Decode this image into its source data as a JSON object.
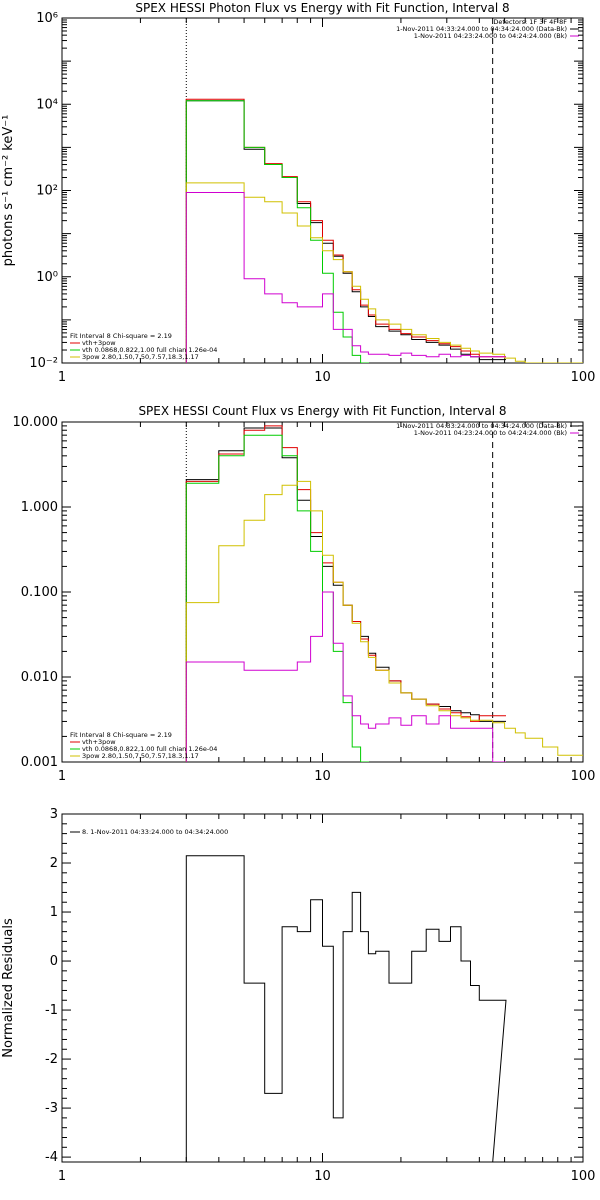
{
  "chart_data": [
    {
      "type": "line",
      "title": "SPEX HESSI Photon Flux vs Energy with Fit Function, Interval 8",
      "ylabel": "photons s⁻¹ cm⁻² keV⁻¹",
      "xlabel": "",
      "xscale": "log",
      "yscale": "log",
      "xlim": [
        1,
        100
      ],
      "ylim": [
        0.01,
        1000000
      ],
      "xticks": [
        {
          "v": 1,
          "label": "1"
        },
        {
          "v": 10,
          "label": "10"
        },
        {
          "v": 100,
          "label": "100"
        }
      ],
      "yticks": [
        {
          "v": 0.01,
          "label": "10⁻²"
        },
        {
          "v": 1,
          "label": "10⁰"
        },
        {
          "v": 100,
          "label": "10²"
        },
        {
          "v": 10000,
          "label": "10⁴"
        },
        {
          "v": 1000000,
          "label": "10⁶"
        }
      ],
      "vlines": [
        {
          "x": 3,
          "style": "dotted"
        },
        {
          "x": 45,
          "style": "dashed"
        }
      ],
      "legend_right": [
        {
          "text": "Detectors: 1F 3F 4F 8F",
          "color": "#000000"
        },
        {
          "text": "1-Nov-2011 04:33:24.000 to 04:34:24.000 (Data-Bk)",
          "color": "#000000"
        },
        {
          "text": "1-Nov-2011 04:23:24.000 to 04:24:24.000 (Bk)",
          "color": "#d000d0"
        }
      ],
      "legend_left": [
        {
          "text": "Fit Interval 8   Chi-square = 2.19",
          "color": "#000000"
        },
        {
          "text": "vth+3pow",
          "color": "#e00000"
        },
        {
          "text": "vth 0.0868,0.822,1.00  full chian 1.26e-04",
          "color": "#00cc00"
        },
        {
          "text": "3pow 2.80,1.50,7.50,7.57,18.3,1.17",
          "color": "#d0c000"
        }
      ],
      "series": [
        {
          "color": "#000000",
          "x": [
            3,
            4,
            5,
            6,
            7,
            8,
            9,
            10,
            11,
            12,
            13,
            14,
            15,
            16,
            18,
            20,
            22,
            25,
            28,
            31,
            34,
            37,
            40,
            45
          ],
          "y": [
            12000,
            12000,
            900,
            400,
            200,
            50,
            18,
            6,
            3,
            1.2,
            0.45,
            0.2,
            0.12,
            0.07,
            0.055,
            0.045,
            0.035,
            0.03,
            0.026,
            0.021,
            0.016,
            0.014,
            0.012,
            0.012
          ]
        },
        {
          "color": "#e00000",
          "x": [
            3,
            4,
            5,
            6,
            7,
            8,
            9,
            10,
            11,
            12,
            13,
            14,
            15,
            16,
            18,
            20,
            22,
            25,
            28,
            31,
            34,
            37,
            40,
            45
          ],
          "y": [
            13000,
            13000,
            1000,
            420,
            210,
            55,
            20,
            7,
            3.2,
            1.3,
            0.5,
            0.22,
            0.13,
            0.08,
            0.06,
            0.048,
            0.04,
            0.033,
            0.028,
            0.024,
            0.019,
            0.016,
            0.014,
            0.014
          ]
        },
        {
          "color": "#00cc00",
          "x": [
            3,
            4,
            5,
            6,
            7,
            8,
            9,
            10,
            11,
            12,
            13,
            14
          ],
          "y": [
            12000,
            12000,
            1000,
            400,
            200,
            40,
            7,
            1.2,
            0.15,
            0.04,
            0.015,
            0.01
          ]
        },
        {
          "color": "#d0c000",
          "x": [
            3,
            4,
            5,
            6,
            7,
            8,
            9,
            10,
            11,
            12,
            13,
            14,
            15,
            16,
            18,
            20,
            22,
            25,
            28,
            31,
            34,
            37,
            40,
            45,
            50,
            55,
            60,
            70,
            80,
            100
          ],
          "y": [
            150,
            150,
            70,
            55,
            30,
            15,
            8,
            4,
            2.5,
            1.3,
            0.6,
            0.3,
            0.18,
            0.1,
            0.08,
            0.06,
            0.045,
            0.037,
            0.03,
            0.026,
            0.022,
            0.019,
            0.017,
            0.016,
            0.013,
            0.011,
            0.01,
            0.01,
            0.01,
            0.01
          ]
        },
        {
          "color": "#d000d0",
          "x": [
            3,
            4,
            5,
            6,
            7,
            8,
            9,
            10,
            11,
            12,
            13,
            14,
            15,
            16,
            18,
            20,
            22,
            25,
            28,
            31,
            34,
            37,
            40,
            45
          ],
          "y": [
            90,
            90,
            0.9,
            0.4,
            0.25,
            0.2,
            0.2,
            0.4,
            0.06,
            0.06,
            0.025,
            0.018,
            0.016,
            0.016,
            0.015,
            0.017,
            0.015,
            0.014,
            0.016,
            0.014,
            0.015,
            0.014,
            0.014,
            0.014
          ]
        }
      ]
    },
    {
      "type": "line",
      "title": "SPEX HESSI Count Flux vs Energy with Fit Function, Interval 8",
      "ylabel": "",
      "xlabel": "",
      "xscale": "log",
      "yscale": "log",
      "xlim": [
        1,
        100
      ],
      "ylim": [
        0.001,
        10
      ],
      "xticks": [
        {
          "v": 1,
          "label": "1"
        },
        {
          "v": 10,
          "label": "10"
        },
        {
          "v": 100,
          "label": "100"
        }
      ],
      "yticks": [
        {
          "v": 0.001,
          "label": "0.001"
        },
        {
          "v": 0.01,
          "label": "0.010"
        },
        {
          "v": 0.1,
          "label": "0.100"
        },
        {
          "v": 1,
          "label": "1.000"
        },
        {
          "v": 10,
          "label": "10.000"
        }
      ],
      "vlines": [
        {
          "x": 3,
          "style": "dotted"
        },
        {
          "x": 45,
          "style": "dashed"
        }
      ],
      "legend_right": [
        {
          "text": "1-Nov-2011 04:33:24.000 to 04:34:24.000 (Data-Bk)",
          "color": "#000000"
        },
        {
          "text": "1-Nov-2011 04:23:24.000 to 04:24:24.000 (Bk)",
          "color": "#d000d0"
        }
      ],
      "legend_left": [
        {
          "text": "Fit Interval 8   Chi-square = 2.19",
          "color": "#000000"
        },
        {
          "text": "vth+3pow",
          "color": "#e00000"
        },
        {
          "text": "vth 0.0868,0.822,1.00  full chian 1.26e-04",
          "color": "#00cc00"
        },
        {
          "text": "3pow 2.80,1.50,7.50,7.57,18.3,1.17",
          "color": "#d0c000"
        }
      ],
      "series": [
        {
          "color": "#000000",
          "x": [
            3,
            4,
            5,
            6,
            7,
            8,
            9,
            10,
            11,
            12,
            13,
            14,
            15,
            16,
            18,
            20,
            22,
            25,
            28,
            31,
            34,
            37,
            40,
            45
          ],
          "y": [
            2.1,
            4.6,
            8.5,
            8.5,
            3.8,
            1.2,
            0.45,
            0.2,
            0.12,
            0.07,
            0.045,
            0.03,
            0.019,
            0.013,
            0.009,
            0.0065,
            0.0055,
            0.0048,
            0.0045,
            0.004,
            0.0038,
            0.0036,
            0.003,
            0.003
          ]
        },
        {
          "color": "#e00000",
          "x": [
            3,
            4,
            5,
            6,
            7,
            8,
            9,
            10,
            11,
            12,
            13,
            14,
            15,
            16,
            18,
            20,
            22,
            25,
            28,
            31,
            34,
            37,
            40,
            45
          ],
          "y": [
            2.0,
            4.2,
            8.0,
            9.0,
            5.0,
            1.6,
            0.5,
            0.22,
            0.13,
            0.07,
            0.045,
            0.028,
            0.018,
            0.012,
            0.009,
            0.0065,
            0.0055,
            0.0048,
            0.0042,
            0.0038,
            0.0034,
            0.003,
            0.0035,
            0.0035
          ]
        },
        {
          "color": "#00cc00",
          "x": [
            3,
            4,
            5,
            6,
            7,
            8,
            9,
            10,
            11,
            12,
            13,
            14
          ],
          "y": [
            1.9,
            4.0,
            7.0,
            7.0,
            4.0,
            0.9,
            0.3,
            0.1,
            0.02,
            0.005,
            0.0015,
            0.001
          ]
        },
        {
          "color": "#d0c000",
          "x": [
            3,
            4,
            5,
            6,
            7,
            8,
            9,
            10,
            11,
            12,
            13,
            14,
            15,
            16,
            18,
            20,
            22,
            25,
            28,
            31,
            34,
            37,
            40,
            45,
            50,
            55,
            60,
            70,
            80,
            100
          ],
          "y": [
            0.075,
            0.35,
            0.7,
            1.4,
            1.8,
            2.0,
            0.9,
            0.27,
            0.13,
            0.07,
            0.043,
            0.026,
            0.017,
            0.012,
            0.0085,
            0.0065,
            0.0055,
            0.0046,
            0.004,
            0.0035,
            0.0033,
            0.0031,
            0.0031,
            0.0029,
            0.0025,
            0.0022,
            0.0019,
            0.0015,
            0.0012,
            0.0012
          ]
        },
        {
          "color": "#d000d0",
          "x": [
            3,
            4,
            5,
            6,
            7,
            8,
            9,
            10,
            11,
            12,
            13,
            14,
            15,
            16,
            18,
            20,
            22,
            25,
            28,
            31,
            34,
            37,
            40,
            45
          ],
          "y": [
            0.015,
            0.015,
            0.012,
            0.012,
            0.012,
            0.015,
            0.03,
            0.1,
            0.025,
            0.006,
            0.0035,
            0.0028,
            0.0025,
            0.0028,
            0.0033,
            0.0027,
            0.0035,
            0.0028,
            0.0035,
            0.0025,
            0.0025,
            0.0025,
            0.0025,
            0.001
          ]
        }
      ]
    },
    {
      "type": "line",
      "title": "",
      "ylabel": "Normalized Residuals",
      "xlabel": "",
      "xscale": "log",
      "yscale": "linear",
      "xlim": [
        1,
        100
      ],
      "ylim": [
        -4.1,
        3
      ],
      "xticks": [
        {
          "v": 1,
          "label": "1"
        },
        {
          "v": 10,
          "label": "10"
        },
        {
          "v": 100,
          "label": "100"
        }
      ],
      "yticks": [
        {
          "v": -4,
          "label": "-4"
        },
        {
          "v": -3,
          "label": "-3"
        },
        {
          "v": -2,
          "label": "-2"
        },
        {
          "v": -1,
          "label": "-1"
        },
        {
          "v": 0,
          "label": "0"
        },
        {
          "v": 1,
          "label": "1"
        },
        {
          "v": 2,
          "label": "2"
        },
        {
          "v": 3,
          "label": "3"
        }
      ],
      "legend_left": [
        {
          "text": "8.  1-Nov-2011 04:33:24.000 to 04:34:24.000",
          "color": "#000000"
        }
      ],
      "series": [
        {
          "color": "#000000",
          "x": [
            3,
            4,
            5,
            6,
            7,
            8,
            9,
            10,
            11,
            12,
            13,
            14,
            15,
            16,
            18,
            20,
            22,
            25,
            28,
            31,
            34,
            37,
            40,
            45
          ],
          "y": [
            2.15,
            2.15,
            -0.45,
            -2.7,
            0.7,
            0.6,
            1.25,
            0.3,
            -3.2,
            0.6,
            1.4,
            0.6,
            0.15,
            0.2,
            -0.45,
            -0.45,
            0.2,
            0.65,
            0.4,
            0.7,
            0.0,
            -0.5,
            -0.8,
            -0.8
          ]
        }
      ]
    }
  ]
}
